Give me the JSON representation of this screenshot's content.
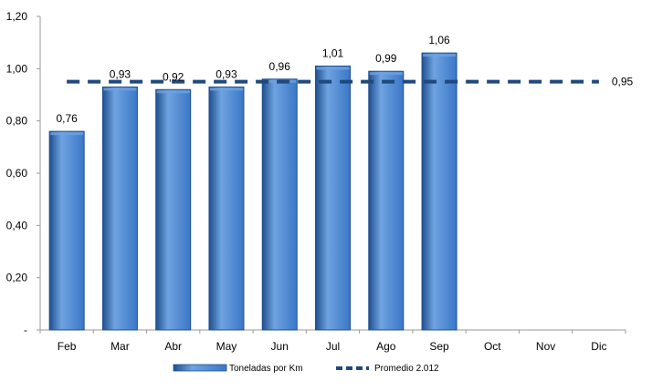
{
  "chart_data": {
    "type": "bar",
    "categories": [
      "Feb",
      "Mar",
      "Abr",
      "May",
      "Jun",
      "Jul",
      "Ago",
      "Sep",
      "Oct",
      "Nov",
      "Dic"
    ],
    "series": [
      {
        "name": "Toneladas por Km",
        "type": "bar",
        "values": [
          0.76,
          0.93,
          0.92,
          0.93,
          0.96,
          1.01,
          0.99,
          1.06,
          null,
          null,
          null
        ],
        "labels": [
          "0,76",
          "0,93",
          "0,92",
          "0,93",
          "0,96",
          "1,01",
          "0,99",
          "1,06",
          "",
          "",
          ""
        ]
      },
      {
        "name": "Promedio 2.012",
        "type": "line",
        "style": "dashed",
        "value": 0.95,
        "label": "0,95"
      }
    ],
    "y_ticks": [
      {
        "value": 0,
        "label": "-"
      },
      {
        "value": 0.2,
        "label": "0,20"
      },
      {
        "value": 0.4,
        "label": "0,40"
      },
      {
        "value": 0.6,
        "label": "0,60"
      },
      {
        "value": 0.8,
        "label": "0,80"
      },
      {
        "value": 1.0,
        "label": "1,00"
      },
      {
        "value": 1.2,
        "label": "1,20"
      }
    ],
    "ylim": [
      0,
      1.2
    ],
    "grid": false,
    "legend_position": "bottom",
    "colors": {
      "bar_fill": "#3a77c7",
      "bar_light": "#6fa3e0",
      "bar_dark": "#1f4f8f",
      "average_line": "#1f497d",
      "axis": "#9a9a9a"
    }
  }
}
